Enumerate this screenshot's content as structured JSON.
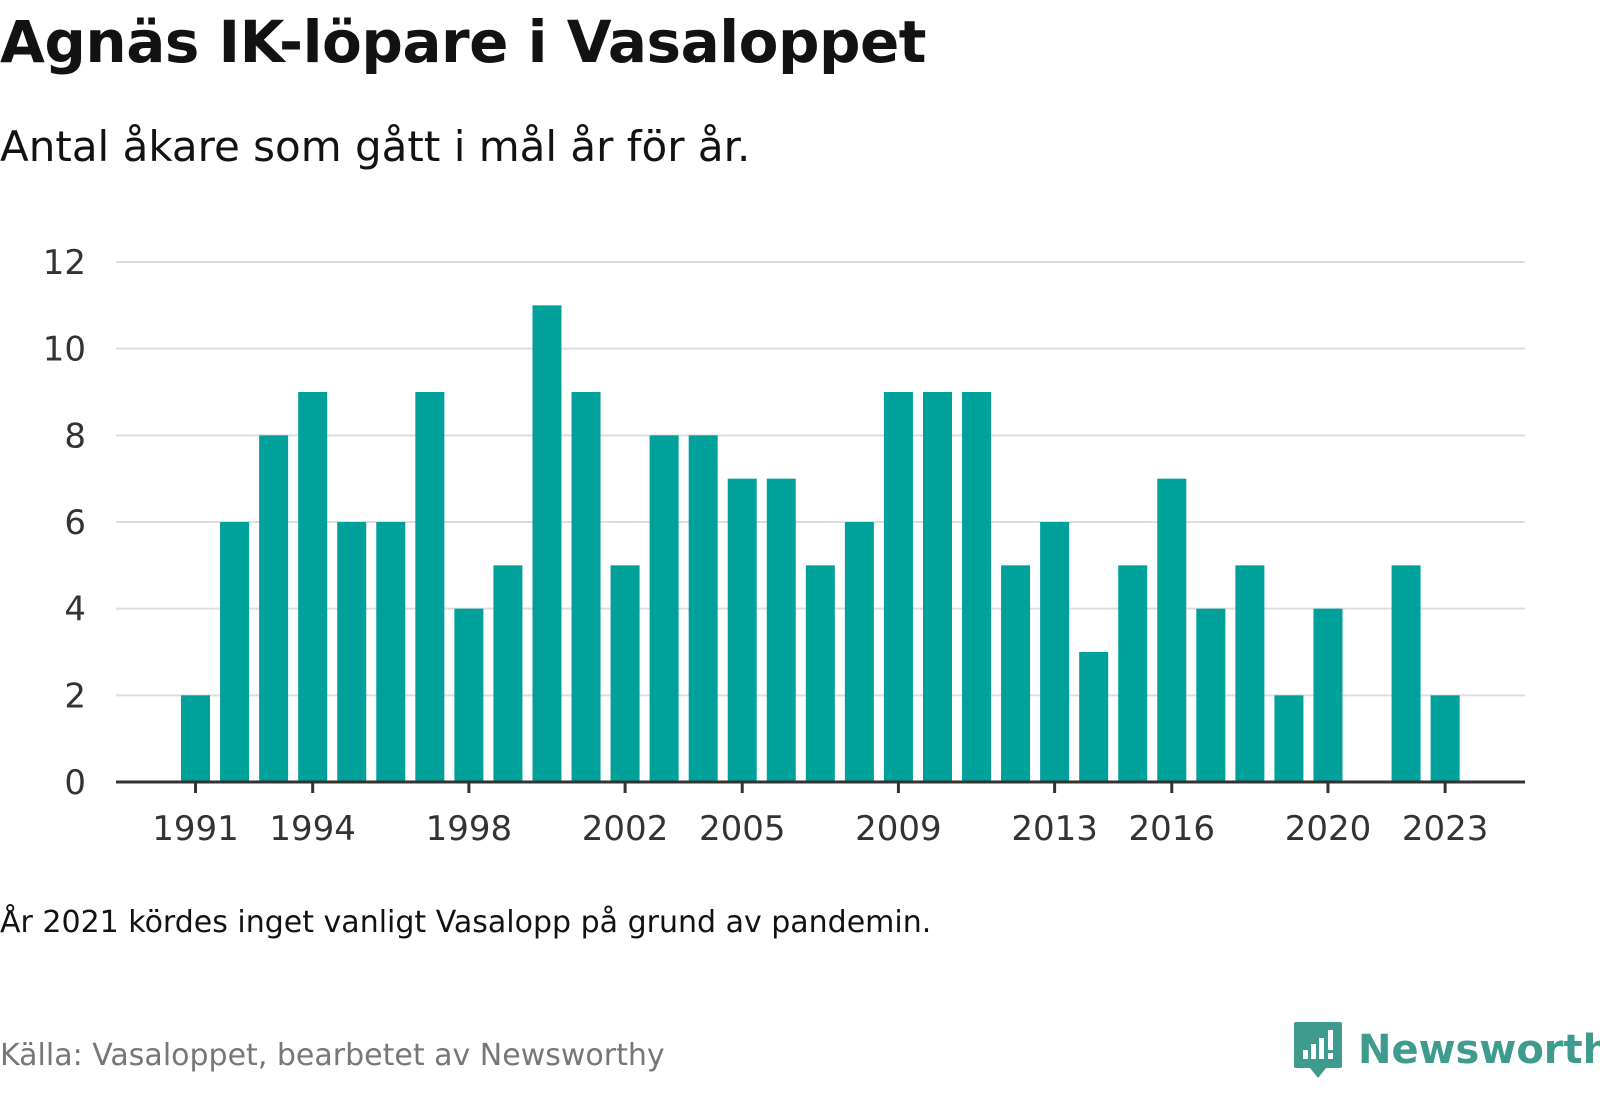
{
  "title": "Agnäs IK-löpare i Vasaloppet",
  "subtitle": "Antal åkare som gått i mål år för år.",
  "note": "År 2021 kördes inget vanligt Vasalopp på grund av pandemin.",
  "source": "Källa: Vasaloppet, bearbetet av Newsworthy",
  "brand": {
    "name": "Newsworthy",
    "color": "#3f9b8e",
    "icon": "newsworthy-logo-icon"
  },
  "colors": {
    "bar": "#00a19a",
    "grid": "#dddddd",
    "axis": "#333333"
  },
  "chart_data": {
    "type": "bar",
    "categories": [
      "1991",
      "1992",
      "1993",
      "1994",
      "1995",
      "1996",
      "1997",
      "1998",
      "1999",
      "2000",
      "2001",
      "2002",
      "2003",
      "2004",
      "2005",
      "2006",
      "2007",
      "2008",
      "2009",
      "2010",
      "2011",
      "2012",
      "2013",
      "2014",
      "2015",
      "2016",
      "2017",
      "2018",
      "2019",
      "2020",
      "2021",
      "2022",
      "2023"
    ],
    "values": [
      2,
      6,
      8,
      9,
      6,
      6,
      9,
      4,
      5,
      11,
      9,
      5,
      8,
      8,
      7,
      7,
      5,
      6,
      9,
      9,
      9,
      5,
      6,
      3,
      5,
      7,
      4,
      5,
      2,
      4,
      null,
      5,
      2
    ],
    "xticks": [
      "1991",
      "1994",
      "1998",
      "2002",
      "2005",
      "2009",
      "2013",
      "2016",
      "2020",
      "2023"
    ],
    "yticks": [
      0,
      2,
      4,
      6,
      8,
      10,
      12
    ],
    "ylim": [
      0,
      12
    ],
    "grid": true,
    "legend": "none"
  }
}
